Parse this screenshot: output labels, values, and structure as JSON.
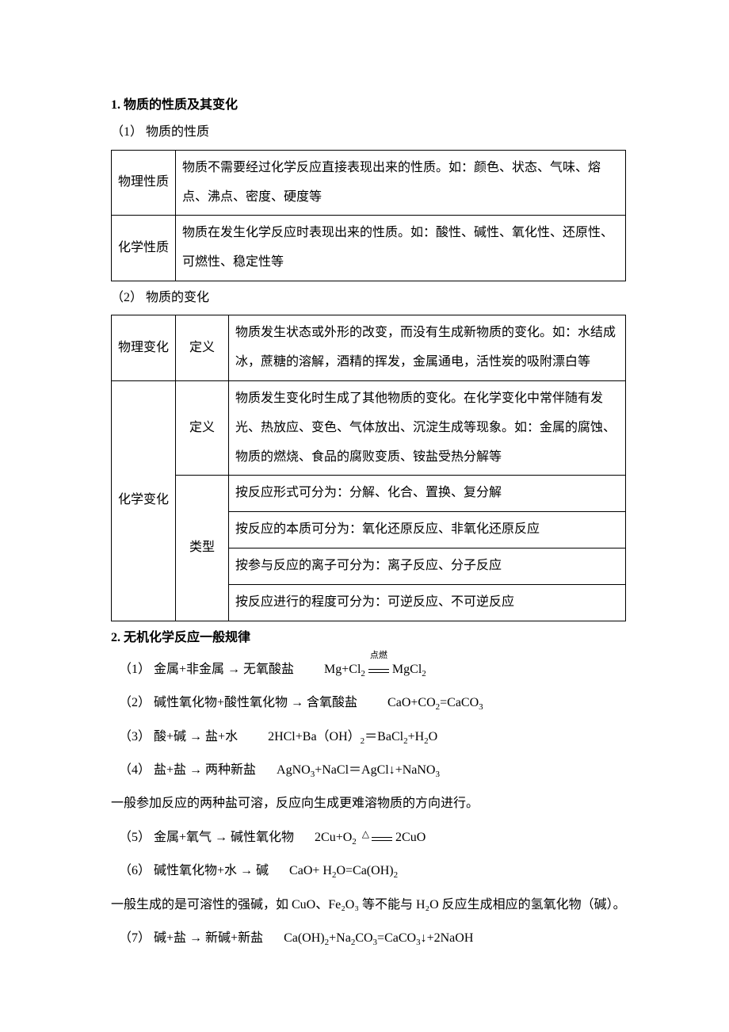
{
  "section1": {
    "heading": "1. 物质的性质及其变化",
    "sub1_label": "（1）  物质的性质",
    "table1": {
      "row1_label": "物理性质",
      "row1_text": "物质不需要经过化学反应直接表现出来的性质。如：颜色、状态、气味、熔点、沸点、密度、硬度等",
      "row2_label": "化学性质",
      "row2_text": "物质在发生化学反应时表现出来的性质。如：酸性、碱性、氧化性、还原性、可燃性、稳定性等"
    },
    "sub2_label": "（2）  物质的变化",
    "table2": {
      "physical_label": "物理变化",
      "physical_def_label": "定义",
      "physical_def_text": "物质发生状态或外形的改变，而没有生成新物质的变化。如：水结成冰，蔗糖的溶解，酒精的挥发，金属通电，活性炭的吸附漂白等",
      "chemical_label": "化学变化",
      "chemical_def_label": "定义",
      "chemical_def_text": "物质发生变化时生成了其他物质的变化。在化学变化中常伴随有发光、热放应、变色、气体放出、沉淀生成等现象。如：金属的腐蚀、物质的燃烧、食品的腐败变质、铵盐受热分解等",
      "chemical_type_label": "类型",
      "chemical_type_1": "按反应形式可分为：分解、化合、置换、复分解",
      "chemical_type_2": "按反应的本质可分为：氧化还原反应、非氧化还原反应",
      "chemical_type_3": "按参与反应的离子可分为：离子反应、分子反应",
      "chemical_type_4": "按反应进行的程度可分为：可逆反应、不可逆反应"
    }
  },
  "section2": {
    "heading": "2. 无机化学反应一般规律",
    "r1_num": "（1）",
    "r1_text": "金属+非金属 → 无氧酸盐",
    "r1_eq_left": "Mg+Cl",
    "r1_eq_cond": "点燃",
    "r1_eq_right": "MgCl",
    "r2_num": "（2）",
    "r2_text": "碱性氧化物+酸性氧化物 → 含氧酸盐",
    "r2_eq": "CaO+CO",
    "r2_eq_r": "=CaCO",
    "r3_num": "（3）",
    "r3_text": "酸+碱 → 盐+水",
    "r3_eq_l": "2HCl+Ba（OH）",
    "r3_eq_r": "＝BaCl",
    "r3_eq_r2": "+H",
    "r3_eq_r3": "O",
    "r4_num": "（4）",
    "r4_text": "盐+盐 → 两种新盐",
    "r4_eq_l": "AgNO",
    "r4_eq_m": "+NaCl＝AgCl↓+NaNO",
    "note4": "一般参加反应的两种盐可溶，反应向生成更难溶物质的方向进行。",
    "r5_num": "（5）",
    "r5_text": "金属+氧气 → 碱性氧化物",
    "r5_eq_l": "2Cu+O",
    "r5_eq_r": " 2CuO",
    "r6_num": "（6）",
    "r6_text": "碱性氧化物+水 → 碱",
    "r6_eq_l": "CaO+ H",
    "r6_eq_r": "O=Ca(OH)",
    "note6": "一般生成的是可溶性的强碱，如 CuO、Fe₂O₃ 等不能与 H₂O 反应生成相应的氢氧化物（碱）。",
    "r7_num": "（7）",
    "r7_text": "碱+盐 → 新碱+新盐",
    "r7_eq_l": "Ca(OH)",
    "r7_eq_m": "+Na",
    "r7_eq_m2": "CO",
    "r7_eq_r": "=CaCO",
    "r7_eq_r2": "↓+2NaOH"
  }
}
